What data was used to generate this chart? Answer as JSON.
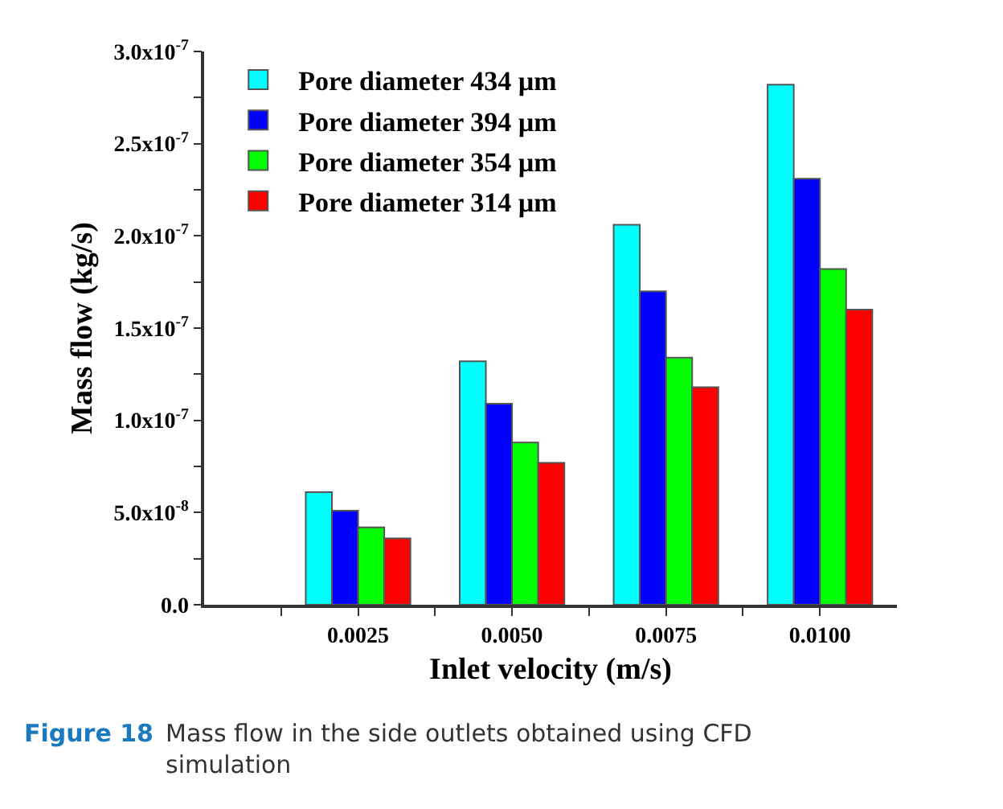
{
  "chart_data": {
    "type": "bar",
    "xlabel": "Inlet velocity (m/s)",
    "ylabel": "Mass flow (kg/s)",
    "x": [
      0.0025,
      0.005,
      0.0075,
      0.01
    ],
    "series": [
      {
        "name": "Pore diameter 434 µm",
        "color": "#00ffff",
        "values": [
          6.1e-08,
          1.32e-07,
          2.06e-07,
          2.82e-07
        ]
      },
      {
        "name": "Pore diameter 394 µm",
        "color": "#0000ff",
        "values": [
          5.1e-08,
          1.09e-07,
          1.7e-07,
          2.31e-07
        ]
      },
      {
        "name": "Pore diameter 354 µm",
        "color": "#00ff00",
        "values": [
          4.2e-08,
          8.8e-08,
          1.34e-07,
          1.82e-07
        ]
      },
      {
        "name": "Pore diameter 314 µm",
        "color": "#ff0000",
        "values": [
          3.6e-08,
          7.7e-08,
          1.18e-07,
          1.6e-07
        ]
      }
    ],
    "xlim": [
      0,
      0.01125
    ],
    "xticks": [
      {
        "value": 0.00125,
        "label": null
      },
      {
        "value": 0.0025,
        "label": "0.0025"
      },
      {
        "value": 0.00375,
        "label": null
      },
      {
        "value": 0.005,
        "label": "0.0050"
      },
      {
        "value": 0.00625,
        "label": null
      },
      {
        "value": 0.0075,
        "label": "0.0075"
      },
      {
        "value": 0.00875,
        "label": null
      },
      {
        "value": 0.01,
        "label": "0.0100"
      }
    ],
    "ylim": [
      0,
      3e-07
    ],
    "yticks": [
      {
        "value": 0,
        "label": "0.0"
      },
      {
        "value": 2.5e-08,
        "label": null
      },
      {
        "value": 5e-08,
        "label": "5.0x10$^{-8}$"
      },
      {
        "value": 7.5e-08,
        "label": null
      },
      {
        "value": 1e-07,
        "label": "1.0x10$^{-7}$"
      },
      {
        "value": 1.25e-07,
        "label": null
      },
      {
        "value": 1.5e-07,
        "label": "1.5x10$^{-7}$"
      },
      {
        "value": 1.75e-07,
        "label": null
      },
      {
        "value": 2e-07,
        "label": "2.0x10$^{-7}$"
      },
      {
        "value": 2.25e-07,
        "label": null
      },
      {
        "value": 2.5e-07,
        "label": "2.5x10$^{-7}$"
      },
      {
        "value": 2.75e-07,
        "label": null
      },
      {
        "value": 3e-07,
        "label": "3.0x10$^{-7}$"
      }
    ],
    "legend": "top left",
    "annotations": [
      "Figure 18",
      "Mass flow in the side outlets obtained using CFD simulation"
    ]
  }
}
